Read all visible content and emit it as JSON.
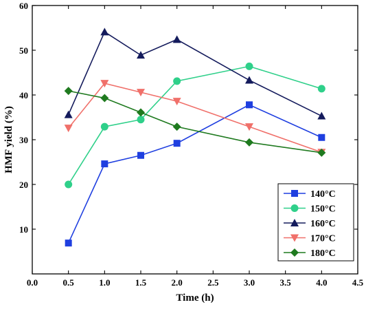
{
  "chart_data": {
    "type": "line",
    "title": "",
    "xlabel": "Time (h)",
    "ylabel": "HMF yield (%)",
    "xlim": [
      0.0,
      4.5
    ],
    "ylim": [
      0,
      60
    ],
    "x_ticks": [
      "0.0",
      "0.5",
      "1.0",
      "1.5",
      "2.0",
      "2.5",
      "3.0",
      "3.5",
      "4.0",
      "4.5"
    ],
    "y_ticks": [
      "10",
      "20",
      "30",
      "40",
      "50",
      "60"
    ],
    "grid": false,
    "legend_position": "bottom-right",
    "x": [
      0.5,
      1.0,
      1.5,
      2.0,
      3.0,
      4.0
    ],
    "series": [
      {
        "name": "140°C",
        "color": "#1f3fe0",
        "marker": "square",
        "values": [
          6.9,
          24.6,
          26.5,
          29.2,
          37.8,
          30.5
        ]
      },
      {
        "name": "150°C",
        "color": "#2fd08a",
        "marker": "circle",
        "values": [
          20.0,
          32.9,
          34.5,
          43.1,
          46.4,
          41.4
        ]
      },
      {
        "name": "160°C",
        "color": "#141b5c",
        "marker": "triangle-up",
        "values": [
          35.6,
          54.1,
          48.9,
          52.4,
          43.3,
          35.3
        ]
      },
      {
        "name": "170°C",
        "color": "#f0706a",
        "marker": "triangle-down",
        "values": [
          32.6,
          42.6,
          40.6,
          38.6,
          32.9,
          27.2
        ]
      },
      {
        "name": "180°C",
        "color": "#1f7a1f",
        "marker": "diamond",
        "values": [
          40.9,
          39.3,
          36.1,
          32.9,
          29.4,
          27.1
        ]
      }
    ]
  }
}
